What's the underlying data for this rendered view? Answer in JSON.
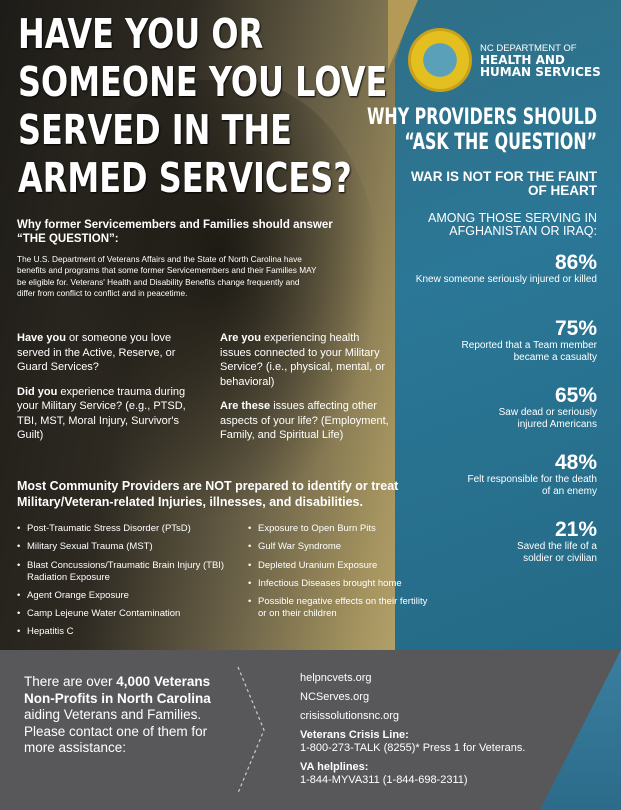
{
  "title": [
    "Have you or",
    "someone you love",
    "served in the",
    "armed services?"
  ],
  "why": {
    "heading": "Why former Servicemembers and Families should answer “THE QUESTION”:",
    "body": "The U.S. Department of Veterans Affairs and the State of North Carolina have benefits and programs that some former Servicemembers and their Families MAY be eligible for. Veterans' Health and Disability Benefits change frequently and differ from conflict to conflict and in peacetime."
  },
  "questions": [
    {
      "bold": "Have you",
      "text": " or someone you love served in the Active, Reserve, or Guard Services?"
    },
    {
      "bold": "Did you",
      "text": " experience trauma during your Military Service? (e.g., PTSD, TBI, MST, Moral Injury, Survivor's Guilt)"
    },
    {
      "bold": "Are you",
      "text": " experiencing health issues connected to your Military Service? (i.e., physical, mental, or behavioral)"
    },
    {
      "bold": "Are these",
      "text": " issues affecting other aspects of your life? (Employment, Family, and Spiritual Life)"
    }
  ],
  "most": "Most Community Providers are NOT prepared to identify or treat Military/Veteran-related Injuries, illnesses, and disabilities.",
  "list_left": [
    "Post-Traumatic Stress Disorder (PTsD)",
    "Military Sexual Trauma (MST)",
    "Blast Concussions/Traumatic Brain Injury (TBI) Radiation Exposure",
    "Agent Orange Exposure",
    "Camp Lejeune Water Contamination",
    "Hepatitis C"
  ],
  "list_right": [
    "Exposure to Open Burn Pits",
    "Gulf War Syndrome",
    "Depleted Uranium Exposure",
    "Infectious Diseases brought home",
    "Possible negative effects on their fertility or on their children"
  ],
  "org": {
    "line1": "NC DEPARTMENT OF",
    "line2": "HEALTH AND",
    "line3": "HUMAN SERVICES"
  },
  "panel": {
    "heading1": "WHY PROVIDERS SHOULD",
    "heading2": "“ASK THE QUESTION”",
    "war": "WAR IS NOT FOR THE FAINT OF HEART",
    "among": "AMONG THOSE SERVING IN AFGHANISTAN OR IRAQ:",
    "stats": [
      {
        "pct": "86%",
        "desc": "Knew someone seriously injured or killed"
      },
      {
        "pct": "75%",
        "desc": "Reported that a Team member became a casualty"
      },
      {
        "pct": "65%",
        "desc": "Saw dead or seriously injured Americans"
      },
      {
        "pct": "48%",
        "desc": "Felt responsible for the death of an enemy"
      },
      {
        "pct": "21%",
        "desc": "Saved the life of a soldier or civilian"
      }
    ]
  },
  "bottom": {
    "a": "There are over ",
    "b": "4,000 Veterans Non-Profits in North Carolina",
    "c": " aiding Veterans and Families. Please contact one of them for more assistance:",
    "links": [
      "helpncvets.org",
      "NCServes.org",
      "crisissolutionsnc.org"
    ],
    "crisis_label": "Veterans Crisis Line:",
    "crisis": "1-800-273-TALK (8255)* Press 1 for Veterans.",
    "va_label": "VA helplines:",
    "va": "1-844-MYVA311 (1-844-698-2311)"
  }
}
